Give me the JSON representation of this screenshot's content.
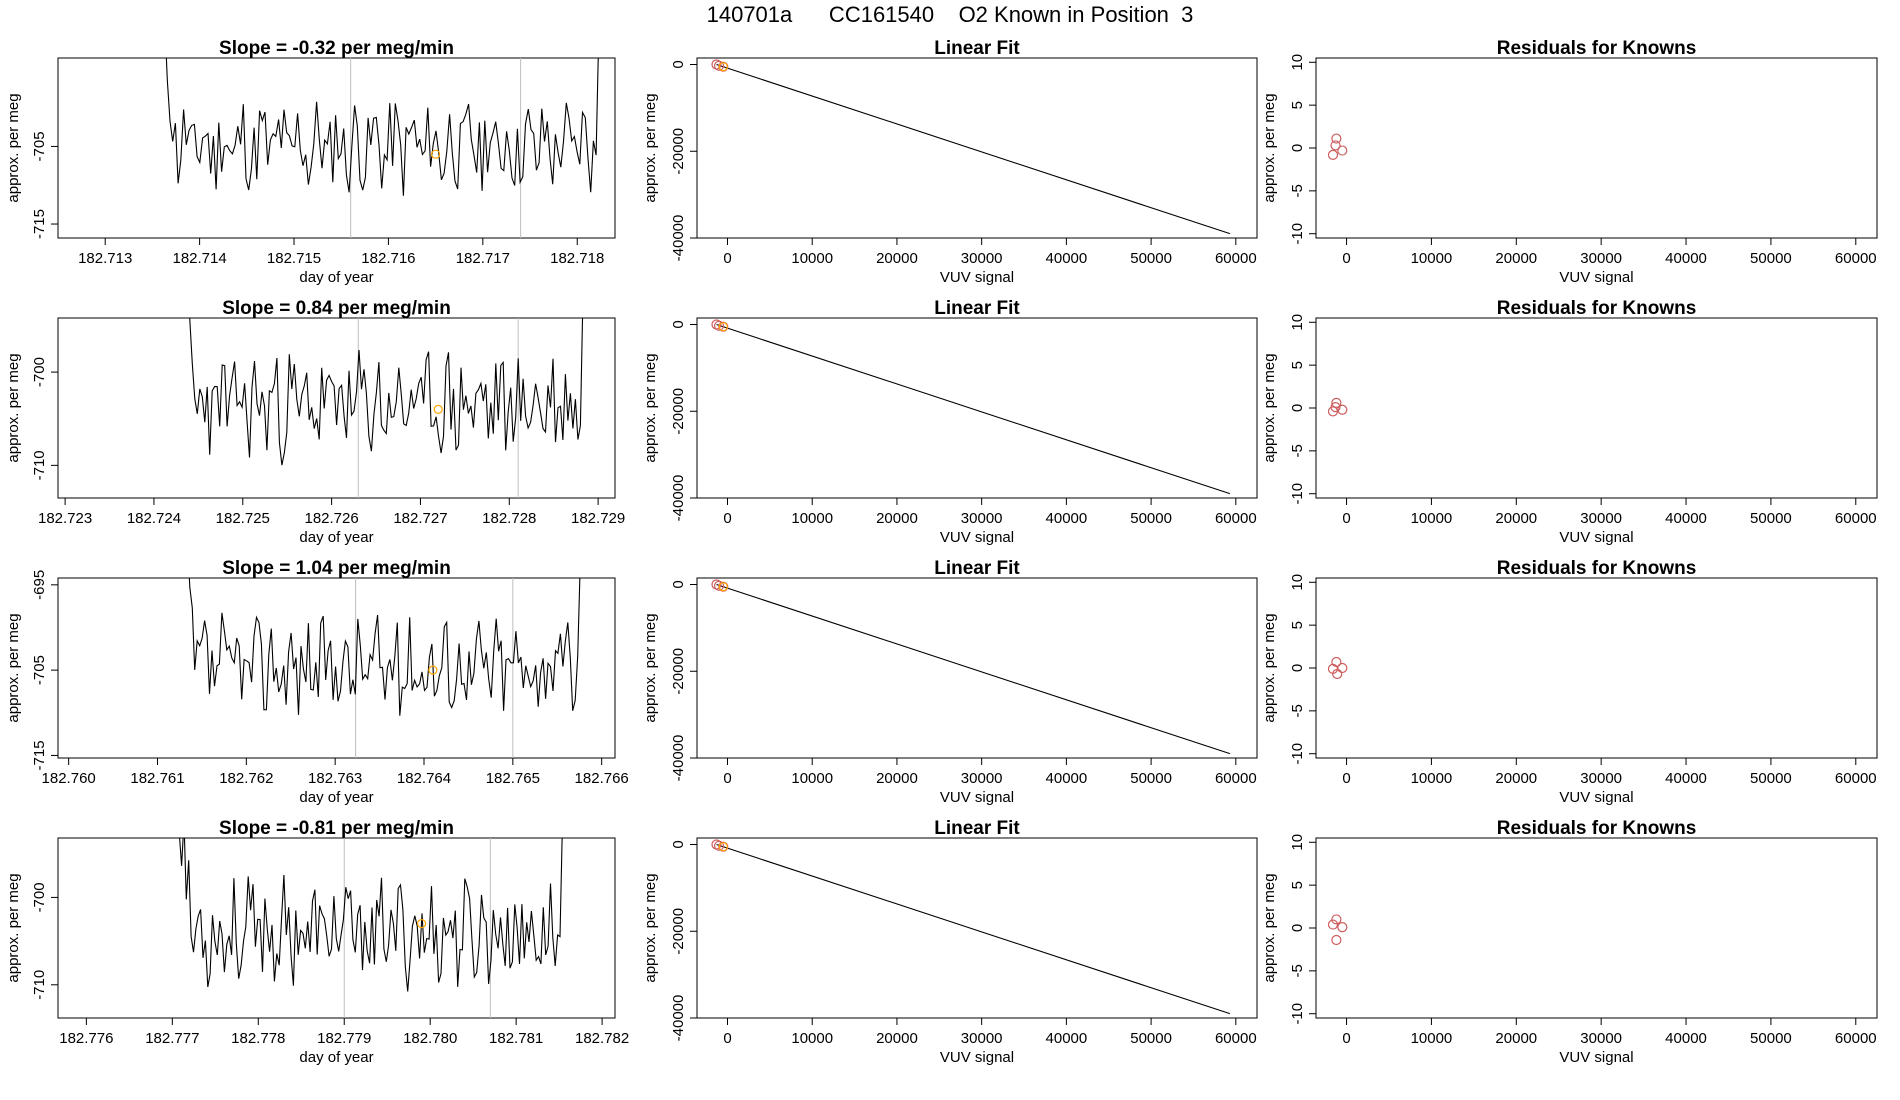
{
  "title": "140701a      CC161540    O2 Known in Position  3",
  "colors": {
    "line": "#000000",
    "frame": "#000000",
    "marker": "#FFA500",
    "residual": "#CD5C5C",
    "vline": "#BEBEBE"
  },
  "chart_data": [
    {
      "type": "line",
      "title": "Slope =  -0.32  per meg/min",
      "xlabel": "day of year",
      "ylabel": "approx. per meg",
      "xlim": [
        182.7125,
        182.7184
      ],
      "ylim": [
        -716.8,
        -693.6
      ],
      "xticks": [
        "182.713",
        "182.714",
        "182.715",
        "182.716",
        "182.717",
        "182.718"
      ],
      "yticks": [
        "-705",
        "-715"
      ],
      "data_start": 182.7136,
      "data_end": 182.7182,
      "vlines": [
        182.7156,
        182.7174
      ],
      "marker": [
        182.7165,
        -706
      ],
      "amp": 3.3,
      "offset": -705,
      "seed": 11
    },
    {
      "type": "line",
      "title": "Slope =  0.84  per meg/min",
      "xlabel": "day of year",
      "ylabel": "approx. per meg",
      "xlim": [
        182.72292,
        182.72919
      ],
      "ylim": [
        -713.5,
        -694.2
      ],
      "xticks": [
        "182.723",
        "182.724",
        "182.725",
        "182.726",
        "182.727",
        "182.728",
        "182.729"
      ],
      "yticks": [
        "-700",
        "-710"
      ],
      "data_start": 182.72432,
      "data_end": 182.7288,
      "vlines": [
        182.7263,
        182.7281
      ],
      "marker": [
        182.7272,
        -704
      ],
      "amp": 3.0,
      "offset": -703.5,
      "seed": 23
    },
    {
      "type": "line",
      "title": "Slope =  1.04  per meg/min",
      "xlabel": "day of year",
      "ylabel": "approx. per meg",
      "xlim": [
        182.75988,
        182.76615
      ],
      "ylim": [
        -715.3,
        -694.2
      ],
      "xticks": [
        "182.760",
        "182.761",
        "182.762",
        "182.763",
        "182.764",
        "182.765",
        "182.766"
      ],
      "yticks": [
        "-695",
        "-705",
        "-715"
      ],
      "data_start": 182.76128,
      "data_end": 182.76573,
      "vlines": [
        182.76323,
        182.765
      ],
      "marker": [
        182.7641,
        -705
      ],
      "amp": 3.0,
      "offset": -704.5,
      "seed": 37
    },
    {
      "type": "line",
      "title": "Slope =  -0.81  per meg/min",
      "xlabel": "day of year",
      "ylabel": "approx. per meg",
      "xlim": [
        182.77567,
        182.78215
      ],
      "ylim": [
        -713.8,
        -693.2
      ],
      "xticks": [
        "182.776",
        "182.777",
        "182.778",
        "182.779",
        "182.780",
        "182.781",
        "182.782"
      ],
      "yticks": [
        "-700",
        "-710"
      ],
      "data_start": 182.77708,
      "data_end": 182.78151,
      "vlines": [
        182.779,
        182.7807
      ],
      "marker": [
        182.7799,
        -703
      ],
      "amp": 3.1,
      "offset": -704,
      "seed": 53
    },
    {
      "type": "line",
      "title": "Linear Fit",
      "xlabel": "VUV signal",
      "ylabel": "approx. per meg",
      "xlim": [
        -3600,
        62500
      ],
      "ylim": [
        -40000,
        1500
      ],
      "xticks": [
        0,
        10000,
        20000,
        30000,
        40000,
        50000,
        60000
      ],
      "yticks": [
        0,
        -20000,
        -40000
      ],
      "line": [
        [
          -1300,
          0
        ],
        [
          59300,
          -39000
        ]
      ],
      "points": [
        [
          -1300,
          0
        ],
        [
          -1000,
          -300
        ],
        [
          -500,
          -500
        ]
      ]
    },
    {
      "type": "scatter",
      "title": "Residuals for Knowns",
      "xlabel": "VUV signal",
      "ylabel": "approx. per meg",
      "xlim": [
        -3600,
        62500
      ],
      "ylim": [
        -10.5,
        10.5
      ],
      "xticks": [
        0,
        10000,
        20000,
        30000,
        40000,
        50000,
        60000
      ],
      "yticks": [
        10,
        5,
        0,
        -5,
        -10
      ],
      "points": [
        [
          -1600,
          -0.8
        ],
        [
          -1200,
          1.1
        ],
        [
          -500,
          -0.3
        ],
        [
          -1300,
          0.3
        ]
      ]
    },
    {
      "type": "line",
      "title": "Linear Fit",
      "xlabel": "VUV signal",
      "ylabel": "approx. per meg",
      "xlim": [
        -3600,
        62500
      ],
      "ylim": [
        -40000,
        1500
      ],
      "xticks": [
        0,
        10000,
        20000,
        30000,
        40000,
        50000,
        60000
      ],
      "yticks": [
        0,
        -20000,
        -40000
      ],
      "line": [
        [
          -1300,
          0
        ],
        [
          59300,
          -39000
        ]
      ],
      "points": [
        [
          -1300,
          0
        ],
        [
          -1000,
          -300
        ],
        [
          -500,
          -500
        ]
      ]
    },
    {
      "type": "scatter",
      "title": "Residuals for Knowns",
      "xlabel": "VUV signal",
      "ylabel": "approx. per meg",
      "xlim": [
        -3600,
        62500
      ],
      "ylim": [
        -10.5,
        10.5
      ],
      "xticks": [
        0,
        10000,
        20000,
        30000,
        40000,
        50000,
        60000
      ],
      "yticks": [
        10,
        5,
        0,
        -5,
        -10
      ],
      "points": [
        [
          -1600,
          -0.4
        ],
        [
          -1200,
          0.6
        ],
        [
          -500,
          -0.2
        ],
        [
          -1300,
          0.1
        ]
      ]
    },
    {
      "type": "line",
      "title": "Linear Fit",
      "xlabel": "VUV signal",
      "ylabel": "approx. per meg",
      "xlim": [
        -3600,
        62500
      ],
      "ylim": [
        -40000,
        1500
      ],
      "xticks": [
        0,
        10000,
        20000,
        30000,
        40000,
        50000,
        60000
      ],
      "yticks": [
        0,
        -20000,
        -40000
      ],
      "line": [
        [
          -1300,
          0
        ],
        [
          59300,
          -39000
        ]
      ],
      "points": [
        [
          -1300,
          0
        ],
        [
          -1000,
          -300
        ],
        [
          -500,
          -500
        ]
      ]
    },
    {
      "type": "scatter",
      "title": "Residuals for Knowns",
      "xlabel": "VUV signal",
      "ylabel": "approx. per meg",
      "xlim": [
        -3600,
        62500
      ],
      "ylim": [
        -10.5,
        10.5
      ],
      "xticks": [
        0,
        10000,
        20000,
        30000,
        40000,
        50000,
        60000
      ],
      "yticks": [
        10,
        5,
        0,
        -5,
        -10
      ],
      "points": [
        [
          -1600,
          -0.1
        ],
        [
          -1200,
          0.7
        ],
        [
          -500,
          0.0
        ],
        [
          -1100,
          -0.7
        ]
      ]
    },
    {
      "type": "line",
      "title": "Linear Fit",
      "xlabel": "VUV signal",
      "ylabel": "approx. per meg",
      "xlim": [
        -3600,
        62500
      ],
      "ylim": [
        -40000,
        1500
      ],
      "xticks": [
        0,
        10000,
        20000,
        30000,
        40000,
        50000,
        60000
      ],
      "yticks": [
        0,
        -20000,
        -40000
      ],
      "line": [
        [
          -1300,
          0
        ],
        [
          59300,
          -39000
        ]
      ],
      "points": [
        [
          -1300,
          0
        ],
        [
          -1000,
          -300
        ],
        [
          -500,
          -500
        ]
      ]
    },
    {
      "type": "scatter",
      "title": "Residuals for Knowns",
      "xlabel": "VUV signal",
      "ylabel": "approx. per meg",
      "xlim": [
        -3600,
        62500
      ],
      "ylim": [
        -10.5,
        10.5
      ],
      "xticks": [
        0,
        10000,
        20000,
        30000,
        40000,
        50000,
        60000
      ],
      "yticks": [
        10,
        5,
        0,
        -5,
        -10
      ],
      "points": [
        [
          -1600,
          0.4
        ],
        [
          -1200,
          1.0
        ],
        [
          -500,
          0.1
        ],
        [
          -1200,
          -1.4
        ]
      ]
    }
  ]
}
